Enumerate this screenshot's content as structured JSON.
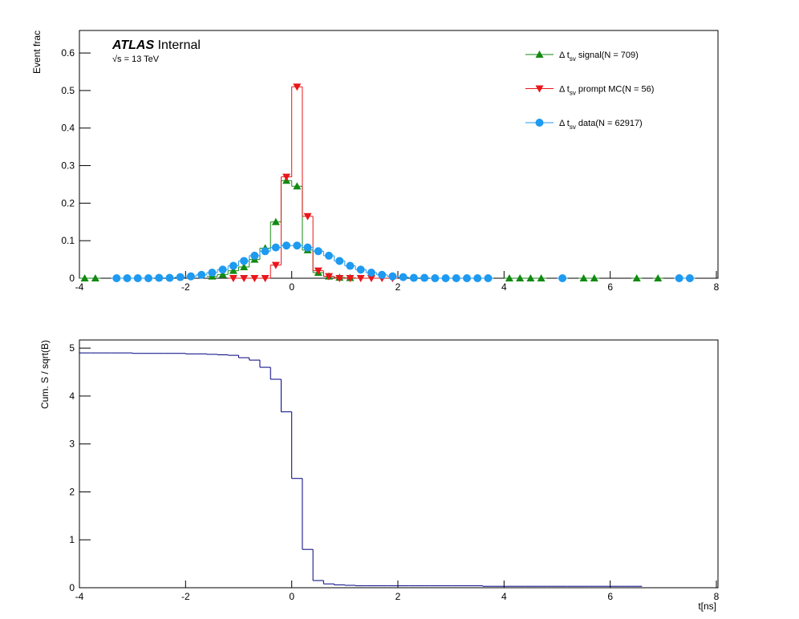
{
  "chart_data": [
    {
      "type": "histogram",
      "annotations": [
        "ATLAS",
        " Internal",
        "√s = 13 TeV"
      ],
      "ylabel": "Event frac",
      "bins": [
        -4,
        -3.8,
        -3.6,
        -3.4,
        -3.2,
        -3,
        -2.8,
        -2.6,
        -2.4,
        -2.2,
        -2,
        -1.8,
        -1.6,
        -1.4,
        -1.2,
        -1,
        -0.8,
        -0.6,
        -0.4,
        -0.2,
        0,
        0.2,
        0.4,
        0.6,
        0.8,
        1,
        1.2,
        1.4,
        1.6,
        1.8,
        2,
        2.2,
        2.4,
        2.6,
        2.8,
        3,
        3.2,
        3.4,
        3.6,
        3.8,
        4,
        4.2,
        4.4,
        4.6,
        4.8,
        5,
        5.2,
        5.4,
        5.6,
        5.8,
        6,
        6.2,
        6.4,
        6.6,
        6.8,
        7,
        7.2,
        7.4,
        7.6,
        7.8,
        8
      ],
      "xlim": [
        -4,
        8
      ],
      "xticks": [
        -4,
        -2,
        0,
        2,
        4,
        6,
        8
      ],
      "ylim": [
        0,
        0.66
      ],
      "yticks": [
        0,
        0.1,
        0.2,
        0.3,
        0.4,
        0.5,
        0.6
      ],
      "legend": "upper right",
      "series": [
        {
          "name": [
            "Δ t",
            "sv",
            " signal(N = 709)"
          ],
          "color": "#138a13",
          "marker": "triangle-up",
          "values": [
            0,
            0,
            null,
            null,
            null,
            null,
            null,
            null,
            null,
            null,
            null,
            null,
            0.005,
            0.01,
            0.02,
            0.03,
            0.05,
            0.08,
            0.15,
            0.26,
            0.245,
            0.075,
            0.015,
            0.005,
            0.002,
            0.001,
            null,
            null,
            null,
            null,
            null,
            null,
            null,
            null,
            null,
            null,
            null,
            null,
            null,
            null,
            0,
            0,
            0,
            0,
            null,
            null,
            null,
            0,
            0,
            null,
            null,
            null,
            0,
            null,
            0,
            null,
            null,
            null,
            null,
            null
          ]
        },
        {
          "name": [
            "Δ t",
            "sv",
            " prompt MC(N = 56)"
          ],
          "color": "#e8161a",
          "marker": "triangle-down",
          "values": [
            null,
            null,
            null,
            null,
            null,
            null,
            null,
            null,
            null,
            null,
            null,
            null,
            null,
            null,
            0,
            0,
            0,
            0,
            0.035,
            0.27,
            0.51,
            0.165,
            0.02,
            0.005,
            0,
            0,
            0,
            0,
            0,
            0,
            null,
            null,
            null,
            null,
            null,
            null,
            null,
            null,
            null,
            null,
            null,
            null,
            null,
            null,
            null,
            null,
            null,
            null,
            null,
            null,
            null,
            null,
            null,
            null,
            null,
            null,
            null,
            null,
            null,
            null
          ]
        },
        {
          "name": [
            "Δ t",
            "sv",
            " data(N = 62917)"
          ],
          "color": "#1e9af0",
          "marker": "circle",
          "values": [
            null,
            null,
            null,
            0,
            0,
            0,
            0,
            0.001,
            0.001,
            0.003,
            0.005,
            0.009,
            0.015,
            0.023,
            0.033,
            0.046,
            0.06,
            0.072,
            0.082,
            0.087,
            0.087,
            0.082,
            0.072,
            0.06,
            0.046,
            0.033,
            0.023,
            0.015,
            0.009,
            0.005,
            0.003,
            0.001,
            0.001,
            0,
            0,
            0,
            0,
            0,
            0,
            null,
            null,
            null,
            null,
            null,
            null,
            0,
            null,
            null,
            null,
            null,
            null,
            null,
            null,
            null,
            null,
            null,
            0,
            0,
            null,
            null
          ]
        }
      ]
    },
    {
      "type": "histogram",
      "ylabel": "Cum. S / sqrt(B)",
      "xlabel": "t[ns]",
      "bins": [
        -4,
        -3.8,
        -3.6,
        -3.4,
        -3.2,
        -3,
        -2.8,
        -2.6,
        -2.4,
        -2.2,
        -2,
        -1.8,
        -1.6,
        -1.4,
        -1.2,
        -1,
        -0.8,
        -0.6,
        -0.4,
        -0.2,
        0,
        0.2,
        0.4,
        0.6,
        0.8,
        1,
        1.2,
        1.4,
        1.6,
        1.8,
        2,
        2.2,
        2.4,
        2.6,
        2.8,
        3,
        3.2,
        3.4,
        3.6,
        3.8,
        4,
        4.2,
        4.4,
        4.6,
        4.8,
        5,
        5.2,
        5.4,
        5.6,
        5.8,
        6,
        6.2,
        6.4,
        6.6,
        6.8,
        7,
        7.2,
        7.4,
        7.6,
        7.8,
        8
      ],
      "xlim": [
        -4,
        8
      ],
      "xticks": [
        -4,
        -2,
        0,
        2,
        4,
        6,
        8
      ],
      "ylim": [
        0,
        5.17
      ],
      "yticks": [
        0,
        1,
        2,
        3,
        4,
        5
      ],
      "color": "#000080",
      "values": [
        4.9,
        4.9,
        4.9,
        4.9,
        4.9,
        4.89,
        4.89,
        4.89,
        4.89,
        4.89,
        4.88,
        4.88,
        4.87,
        4.86,
        4.85,
        4.8,
        4.75,
        4.6,
        4.35,
        3.67,
        2.28,
        0.8,
        0.15,
        0.08,
        0.06,
        0.05,
        0.04,
        0.04,
        0.04,
        0.04,
        0.04,
        0.04,
        0.04,
        0.04,
        0.04,
        0.04,
        0.04,
        0.04,
        0.03,
        0.03,
        0.03,
        0.03,
        0.03,
        0.03,
        0.03,
        0.03,
        0.03,
        0.03,
        0.03,
        0.03,
        0.03,
        0.03,
        0.03,
        null,
        null,
        null,
        null,
        null,
        null,
        null
      ]
    }
  ]
}
